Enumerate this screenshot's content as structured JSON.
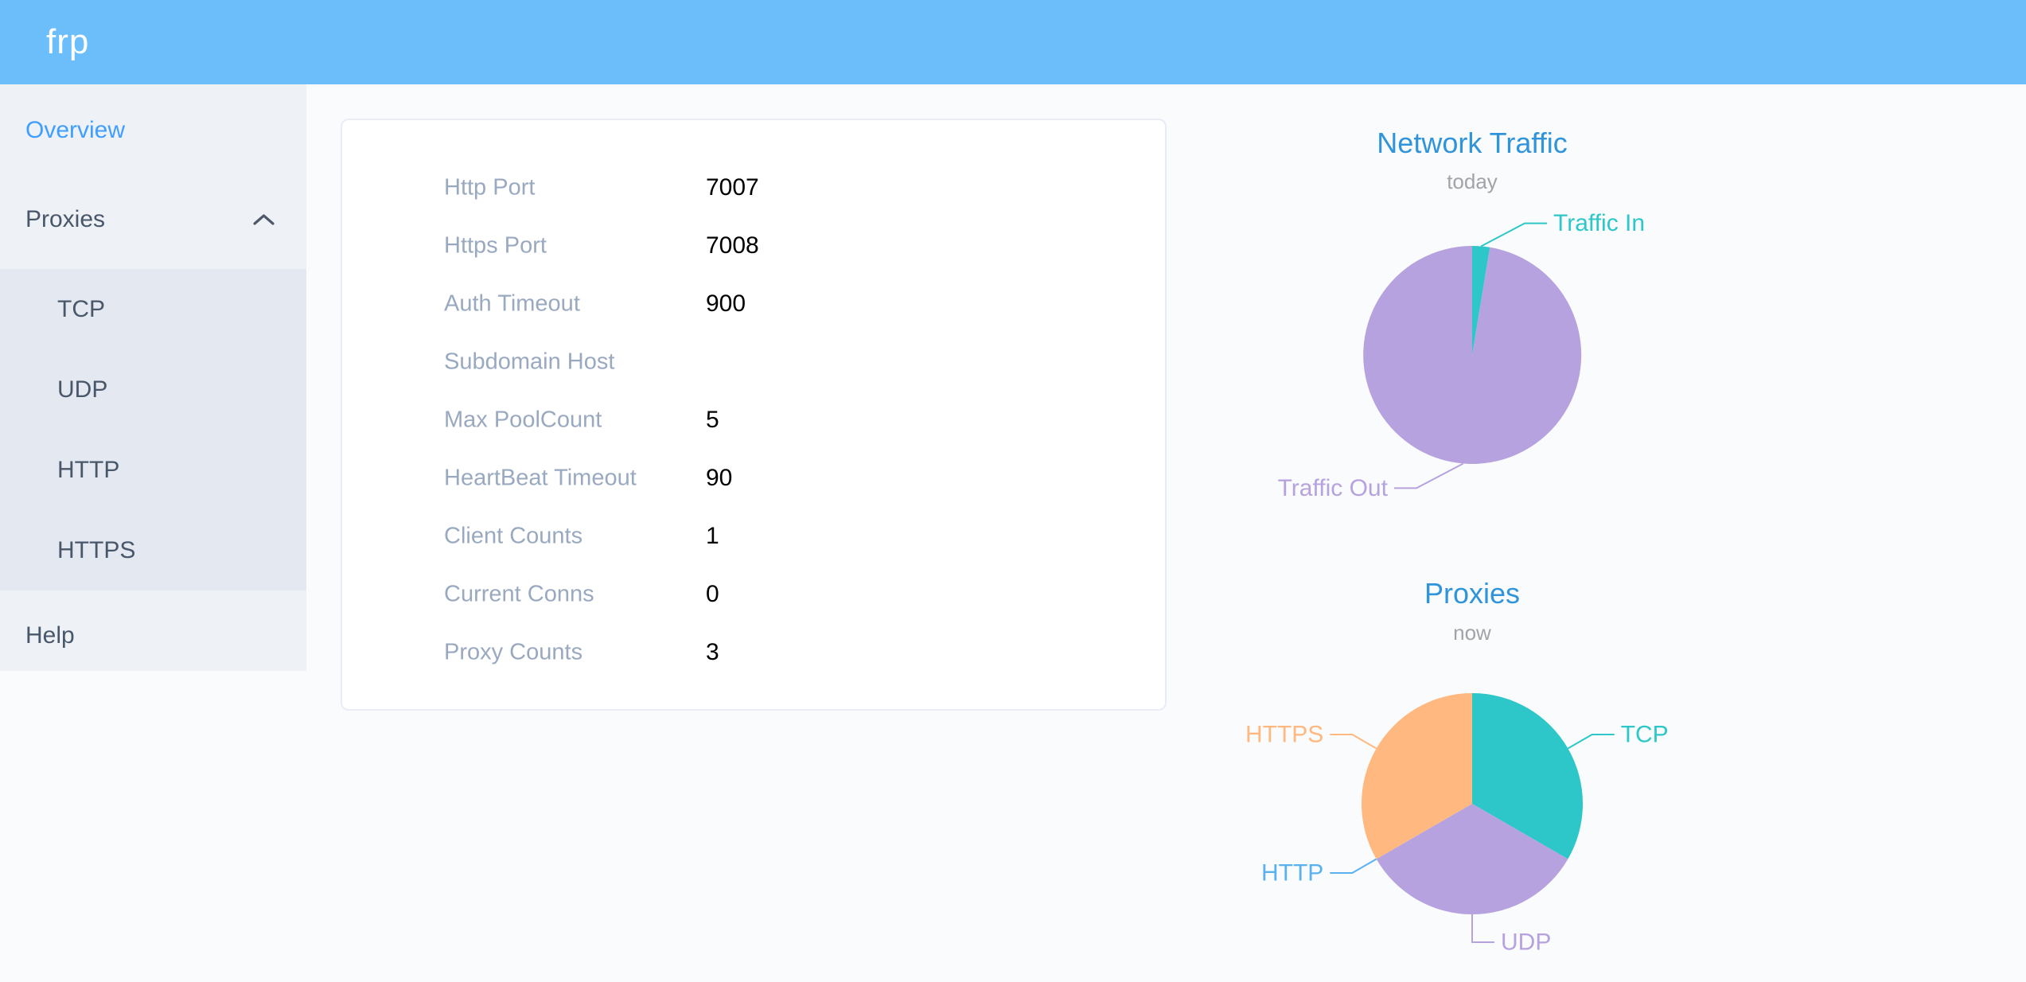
{
  "header": {
    "logo": "frp"
  },
  "sidebar": {
    "items": [
      {
        "id": "overview",
        "label": "Overview",
        "active": true
      },
      {
        "id": "proxies",
        "label": "Proxies",
        "expanded": true,
        "children": [
          {
            "id": "tcp",
            "label": "TCP"
          },
          {
            "id": "udp",
            "label": "UDP"
          },
          {
            "id": "http",
            "label": "HTTP"
          },
          {
            "id": "https",
            "label": "HTTPS"
          }
        ]
      },
      {
        "id": "help",
        "label": "Help"
      }
    ]
  },
  "server_info": {
    "rows": [
      {
        "label": "Http Port",
        "value": "7007"
      },
      {
        "label": "Https Port",
        "value": "7008"
      },
      {
        "label": "Auth Timeout",
        "value": "900"
      },
      {
        "label": "Subdomain Host",
        "value": ""
      },
      {
        "label": "Max PoolCount",
        "value": "5"
      },
      {
        "label": "HeartBeat Timeout",
        "value": "90"
      },
      {
        "label": "Client Counts",
        "value": "1"
      },
      {
        "label": "Current Conns",
        "value": "0"
      },
      {
        "label": "Proxy Counts",
        "value": "3"
      }
    ]
  },
  "chart_data": [
    {
      "type": "pie",
      "title": "Network Traffic",
      "subtitle": "today",
      "series": [
        {
          "name": "Traffic In",
          "value": 2.6,
          "label_dx": 52,
          "label_dy": 6
        },
        {
          "name": "Traffic Out",
          "value": 97.4,
          "label_dx": -56,
          "label_dy": -4
        }
      ],
      "value_units": "percent of total traffic, estimated from slice angles (byte values not shown)",
      "colors": [
        "#2ec7c9",
        "#b6a2de"
      ],
      "title_color": "#2f94da",
      "subtitle_color": "#a0a3a8",
      "legend": "none",
      "label_position": "outside-with-leader-lines"
    },
    {
      "type": "pie",
      "title": "Proxies",
      "subtitle": "now",
      "series": [
        {
          "name": "TCP",
          "value": 1
        },
        {
          "name": "UDP",
          "value": 1
        },
        {
          "name": "HTTP",
          "value": 0
        },
        {
          "name": "HTTPS",
          "value": 1
        }
      ],
      "value_units": "proxy count (sums to Proxy Counts = 3; HTTP slice has zero size)",
      "colors": [
        "#2ec7c9",
        "#b6a2de",
        "#5ab1ef",
        "#ffb980"
      ],
      "title_color": "#2f94da",
      "subtitle_color": "#a0a3a8",
      "legend": "none",
      "label_position": "outside-with-leader-lines"
    }
  ],
  "colors": {
    "header_bg": "#6cbefa",
    "sidebar_bg": "#eef1f6",
    "submenu_bg": "#e4e8f1",
    "menu_text": "#48576a",
    "active_menu_text": "#409eff",
    "card_border": "#e9ecf7",
    "info_label": "#99a9bf",
    "info_value": "#000000",
    "chart_title": "#2f94da",
    "palette": [
      "#2ec7c9",
      "#b6a2de",
      "#5ab1ef",
      "#ffb980"
    ]
  }
}
